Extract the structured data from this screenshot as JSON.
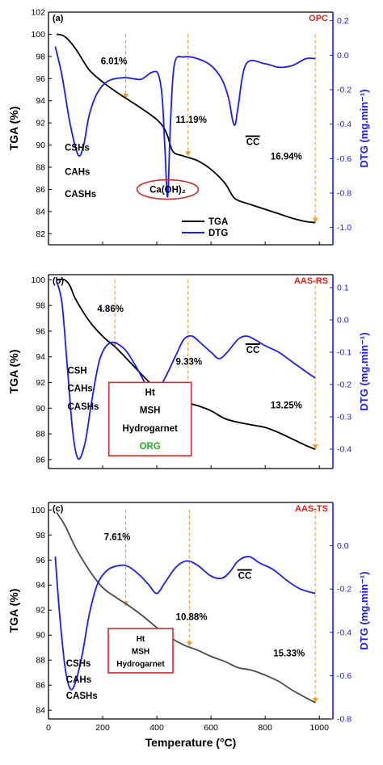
{
  "colors": {
    "tga": "#000000",
    "tga_c": "#4a4a4a",
    "dtg": "#1a1aff",
    "title": "#e0201b",
    "arrow": "#f29a2e",
    "box": "#d62a2a",
    "org": "#2eaa2e",
    "axis_right": "#1a1aff"
  },
  "chart_data": [
    {
      "panel": "(a)",
      "title": "OPC",
      "type": "line",
      "ylabel": "TGA (%)",
      "y2label": "DTG (mg.min⁻¹)",
      "xlim": [
        0,
        1050
      ],
      "ylim": [
        81,
        102
      ],
      "y2lim": [
        -1.1,
        0.25
      ],
      "yticks": [
        82,
        84,
        86,
        88,
        90,
        92,
        94,
        96,
        98,
        100,
        102
      ],
      "y2ticks": [
        -1.0,
        -0.8,
        -0.6,
        -0.4,
        -0.2,
        0.0,
        0.2
      ],
      "y2ticklabels": [
        "-1.0",
        "-0.8",
        "-0.6",
        "-0.4",
        "-0.2",
        "0.0",
        "0.2"
      ],
      "series": [
        {
          "name": "TGA",
          "axis": "left",
          "x": [
            30,
            60,
            100,
            150,
            200,
            250,
            300,
            350,
            400,
            425,
            440,
            460,
            500,
            550,
            600,
            650,
            680,
            700,
            750,
            800,
            850,
            900,
            950,
            985
          ],
          "y": [
            100,
            99.8,
            98.7,
            96.8,
            95.7,
            94.8,
            94.0,
            93.2,
            92.3,
            91.6,
            90.8,
            89.4,
            89.0,
            88.6,
            87.8,
            86.6,
            85.4,
            85.0,
            84.6,
            84.2,
            83.8,
            83.4,
            83.1,
            83.0
          ]
        },
        {
          "name": "DTG",
          "axis": "right",
          "x": [
            25,
            50,
            80,
            110,
            130,
            150,
            180,
            220,
            280,
            340,
            380,
            405,
            420,
            430,
            440,
            450,
            465,
            500,
            550,
            600,
            640,
            665,
            680,
            690,
            700,
            730,
            800,
            850,
            900,
            950,
            985
          ],
          "y": [
            0.05,
            -0.12,
            -0.4,
            -0.58,
            -0.52,
            -0.35,
            -0.22,
            -0.15,
            -0.13,
            -0.14,
            -0.1,
            -0.11,
            -0.25,
            -0.55,
            -0.82,
            -0.4,
            -0.05,
            -0.01,
            -0.02,
            -0.06,
            -0.14,
            -0.25,
            -0.38,
            -0.4,
            -0.3,
            -0.05,
            -0.05,
            -0.07,
            -0.06,
            -0.02,
            -0.02
          ]
        }
      ],
      "annotations": [
        {
          "text": "6.01%",
          "x": 193,
          "y": 97.3
        },
        {
          "text": "11.19%",
          "x": 470,
          "y": 92.0
        },
        {
          "text": "CC",
          "x": 730,
          "y": 90.0,
          "overline": true
        },
        {
          "text": "16.94%",
          "x": 820,
          "y": 88.7
        },
        {
          "text": "CSHs",
          "x": 60,
          "y": 89.5
        },
        {
          "text": "CAHs",
          "x": 60,
          "y": 87.3
        },
        {
          "text": "CASHs",
          "x": 60,
          "y": 85.3
        },
        {
          "text": "Ca(OH)₂",
          "x": 440,
          "y": 85.7,
          "circled": true
        }
      ],
      "arrows": [
        {
          "x": 285,
          "y_from": 100,
          "y_to": 94.2
        },
        {
          "x": 515,
          "y_from": 100,
          "y_to": 89.0
        },
        {
          "x": 985,
          "y_from": 100,
          "y_to": 83.0
        }
      ],
      "legend": {
        "placement": "bottom-right",
        "entries": [
          "TGA",
          "DTG"
        ]
      }
    },
    {
      "panel": "(b)",
      "title": "AAS-RS",
      "type": "line",
      "ylabel": "TGA (%)",
      "y2label": "DTG (mg.min⁻¹)",
      "xlim": [
        0,
        1050
      ],
      "ylim": [
        85.3,
        100.4
      ],
      "y2lim": [
        -0.46,
        0.14
      ],
      "yticks": [
        86,
        88,
        90,
        92,
        94,
        96,
        98,
        100
      ],
      "y2ticks": [
        -0.4,
        -0.3,
        -0.2,
        -0.1,
        0.0,
        0.1
      ],
      "y2ticklabels": [
        "-0.4",
        "-0.3",
        "-0.2",
        "-0.1",
        "0.0",
        "0.1"
      ],
      "series": [
        {
          "name": "TGA",
          "axis": "left",
          "x": [
            30,
            60,
            80,
            100,
            150,
            200,
            250,
            300,
            350,
            400,
            450,
            500,
            550,
            600,
            650,
            700,
            750,
            800,
            850,
            900,
            950,
            985
          ],
          "y": [
            100,
            100,
            99.5,
            98.5,
            96.8,
            95.6,
            94.7,
            93.6,
            92.5,
            91.5,
            91.0,
            90.5,
            90.2,
            89.8,
            89.2,
            88.9,
            88.7,
            88.5,
            88.1,
            87.6,
            87.1,
            86.8
          ]
        },
        {
          "name": "DTG",
          "axis": "right",
          "x": [
            30,
            50,
            70,
            90,
            110,
            135,
            160,
            190,
            230,
            280,
            320,
            360,
            380,
            400,
            430,
            470,
            500,
            530,
            560,
            600,
            630,
            660,
            700,
            730,
            760,
            800,
            850,
            900,
            950,
            985
          ],
          "y": [
            0.12,
            0.05,
            -0.15,
            -0.35,
            -0.43,
            -0.38,
            -0.25,
            -0.12,
            -0.07,
            -0.09,
            -0.14,
            -0.2,
            -0.22,
            -0.22,
            -0.18,
            -0.11,
            -0.06,
            -0.05,
            -0.07,
            -0.1,
            -0.12,
            -0.1,
            -0.06,
            -0.05,
            -0.06,
            -0.08,
            -0.1,
            -0.13,
            -0.16,
            -0.18
          ]
        }
      ],
      "annotations": [
        {
          "text": "4.86%",
          "x": 180,
          "y": 97.5
        },
        {
          "text": "9.33%",
          "x": 470,
          "y": 93.4
        },
        {
          "text": "CC",
          "x": 730,
          "y": 94.3,
          "overline": true
        },
        {
          "text": "13.25%",
          "x": 820,
          "y": 90.0
        },
        {
          "text": "CSH",
          "x": 70,
          "y": 92.7
        },
        {
          "text": "CAHs",
          "x": 70,
          "y": 91.3
        },
        {
          "text": "CASHs",
          "x": 70,
          "y": 89.9
        }
      ],
      "boxed": [
        {
          "text": "Ht",
          "x": 375,
          "y": 91.0
        },
        {
          "text": "MSH",
          "x": 375,
          "y": 89.6
        },
        {
          "text": "Hydrogarnet",
          "x": 375,
          "y": 88.2
        },
        {
          "text": "ORG",
          "x": 375,
          "y": 86.8,
          "color": "org"
        }
      ],
      "arrows": [
        {
          "x": 245,
          "y_from": 100,
          "y_to": 94.8
        },
        {
          "x": 515,
          "y_from": 100,
          "y_to": 90.5
        },
        {
          "x": 985,
          "y_from": 100,
          "y_to": 86.8
        }
      ]
    },
    {
      "panel": "(c)",
      "title": "AAS-TS",
      "type": "line",
      "ylabel": "TGA (%)",
      "y2label": "DTG (mg.min⁻¹)",
      "xlim": [
        0,
        1050
      ],
      "ylim": [
        83.3,
        100.6
      ],
      "y2lim": [
        -0.8,
        0.2
      ],
      "yticks": [
        84,
        86,
        88,
        90,
        92,
        94,
        96,
        98,
        100
      ],
      "y2ticks": [
        -0.8,
        -0.6,
        -0.4,
        -0.2,
        0.0
      ],
      "y2ticklabels": [
        "-0.8",
        "-0.6",
        "-0.4",
        "-0.2",
        "0.0"
      ],
      "xticks": [
        0,
        200,
        400,
        600,
        800,
        1000
      ],
      "xlabel": "Temperature (°C)",
      "series": [
        {
          "name": "TGA",
          "axis": "left",
          "x": [
            30,
            60,
            100,
            150,
            200,
            250,
            300,
            350,
            400,
            450,
            500,
            550,
            600,
            650,
            700,
            750,
            800,
            850,
            900,
            950,
            985
          ],
          "y": [
            99.8,
            98.8,
            97.0,
            95.2,
            93.8,
            93.0,
            92.3,
            91.5,
            90.6,
            89.8,
            89.2,
            88.8,
            88.3,
            87.9,
            87.4,
            87.2,
            86.8,
            86.3,
            85.6,
            85.0,
            84.6
          ]
        },
        {
          "name": "DTG",
          "axis": "right",
          "x": [
            25,
            40,
            60,
            80,
            100,
            125,
            150,
            180,
            220,
            270,
            300,
            340,
            370,
            400,
            430,
            470,
            510,
            550,
            600,
            640,
            670,
            700,
            740,
            780,
            830,
            880,
            930,
            985
          ],
          "y": [
            -0.05,
            -0.3,
            -0.55,
            -0.66,
            -0.63,
            -0.5,
            -0.32,
            -0.18,
            -0.11,
            -0.09,
            -0.1,
            -0.14,
            -0.18,
            -0.22,
            -0.17,
            -0.1,
            -0.07,
            -0.09,
            -0.14,
            -0.15,
            -0.12,
            -0.07,
            -0.05,
            -0.08,
            -0.11,
            -0.16,
            -0.2,
            -0.22
          ]
        }
      ],
      "annotations": [
        {
          "text": "7.61%",
          "x": 205,
          "y": 97.6
        },
        {
          "text": "10.88%",
          "x": 470,
          "y": 91.2
        },
        {
          "text": "CC",
          "x": 700,
          "y": 94.5,
          "overline": true
        },
        {
          "text": "15.33%",
          "x": 830,
          "y": 88.3
        },
        {
          "text": "CSHs",
          "x": 65,
          "y": 87.5
        },
        {
          "text": "CAHs",
          "x": 65,
          "y": 86.2
        },
        {
          "text": "CASHs",
          "x": 65,
          "y": 84.9
        }
      ],
      "boxed": [
        {
          "text": "Ht",
          "x": 340,
          "y": 89.5
        },
        {
          "text": "MSH",
          "x": 340,
          "y": 88.5
        },
        {
          "text": "Hydrogarnet",
          "x": 340,
          "y": 87.5
        }
      ],
      "arrows": [
        {
          "x": 285,
          "y_from": 100,
          "y_to": 92.3
        },
        {
          "x": 520,
          "y_from": 100,
          "y_to": 89.1
        },
        {
          "x": 985,
          "y_from": 100,
          "y_to": 84.6
        }
      ]
    }
  ]
}
